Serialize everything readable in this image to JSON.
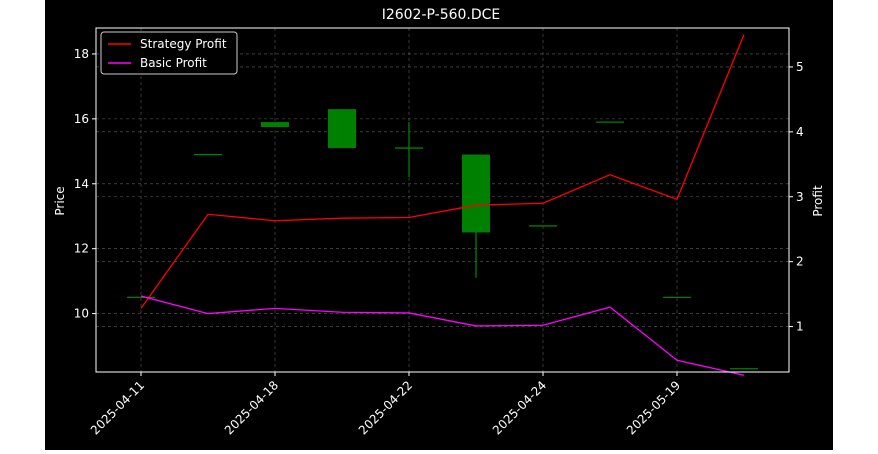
{
  "chart_data": {
    "type": "candlestick+line",
    "title": "I2602-P-560.DCE",
    "xlabel": "",
    "ylabel": "Price",
    "y2label": "Profit",
    "ylim": [
      8.2,
      18.8
    ],
    "y2lim": [
      0.3,
      5.6
    ],
    "yticks": [
      10,
      12,
      14,
      16,
      18
    ],
    "y2ticks": [
      1,
      2,
      3,
      4,
      5
    ],
    "grid": true,
    "legend_position": "top-left",
    "categories": [
      "2025-04-11",
      "",
      "2025-04-18",
      "",
      "2025-04-22",
      "",
      "2025-04-24",
      "",
      "2025-05-19",
      ""
    ],
    "xtick_labels": [
      "2025-04-11",
      "2025-04-18",
      "2025-04-22",
      "2025-04-24",
      "2025-05-19"
    ],
    "candles": [
      {
        "open": 10.5,
        "high": 10.5,
        "low": 10.5,
        "close": 10.5
      },
      {
        "open": 14.9,
        "high": 14.9,
        "low": 14.9,
        "close": 14.9
      },
      {
        "open": 15.75,
        "high": 15.9,
        "low": 15.75,
        "close": 15.9
      },
      {
        "open": 15.1,
        "high": 16.3,
        "low": 15.1,
        "close": 16.3
      },
      {
        "open": 15.1,
        "high": 15.9,
        "low": 14.2,
        "close": 15.1
      },
      {
        "open": 12.5,
        "high": 14.9,
        "low": 11.1,
        "close": 14.9
      },
      {
        "open": 12.7,
        "high": 12.7,
        "low": 12.7,
        "close": 12.7
      },
      {
        "open": 15.9,
        "high": 15.9,
        "low": 15.9,
        "close": 15.9
      },
      {
        "open": 10.5,
        "high": 10.5,
        "low": 10.5,
        "close": 10.5
      },
      {
        "open": 8.3,
        "high": 8.3,
        "low": 8.3,
        "close": 8.3
      }
    ],
    "series": [
      {
        "name": "Strategy Profit",
        "axis": "right",
        "color": "#ff0000",
        "values": [
          1.28,
          2.73,
          2.63,
          2.67,
          2.68,
          2.87,
          2.9,
          3.34,
          2.96,
          5.5
        ]
      },
      {
        "name": "Basic Profit",
        "axis": "right",
        "color": "#ff00ff",
        "values": [
          1.47,
          1.2,
          1.28,
          1.22,
          1.21,
          1.01,
          1.02,
          1.3,
          0.48,
          0.25
        ]
      }
    ]
  }
}
